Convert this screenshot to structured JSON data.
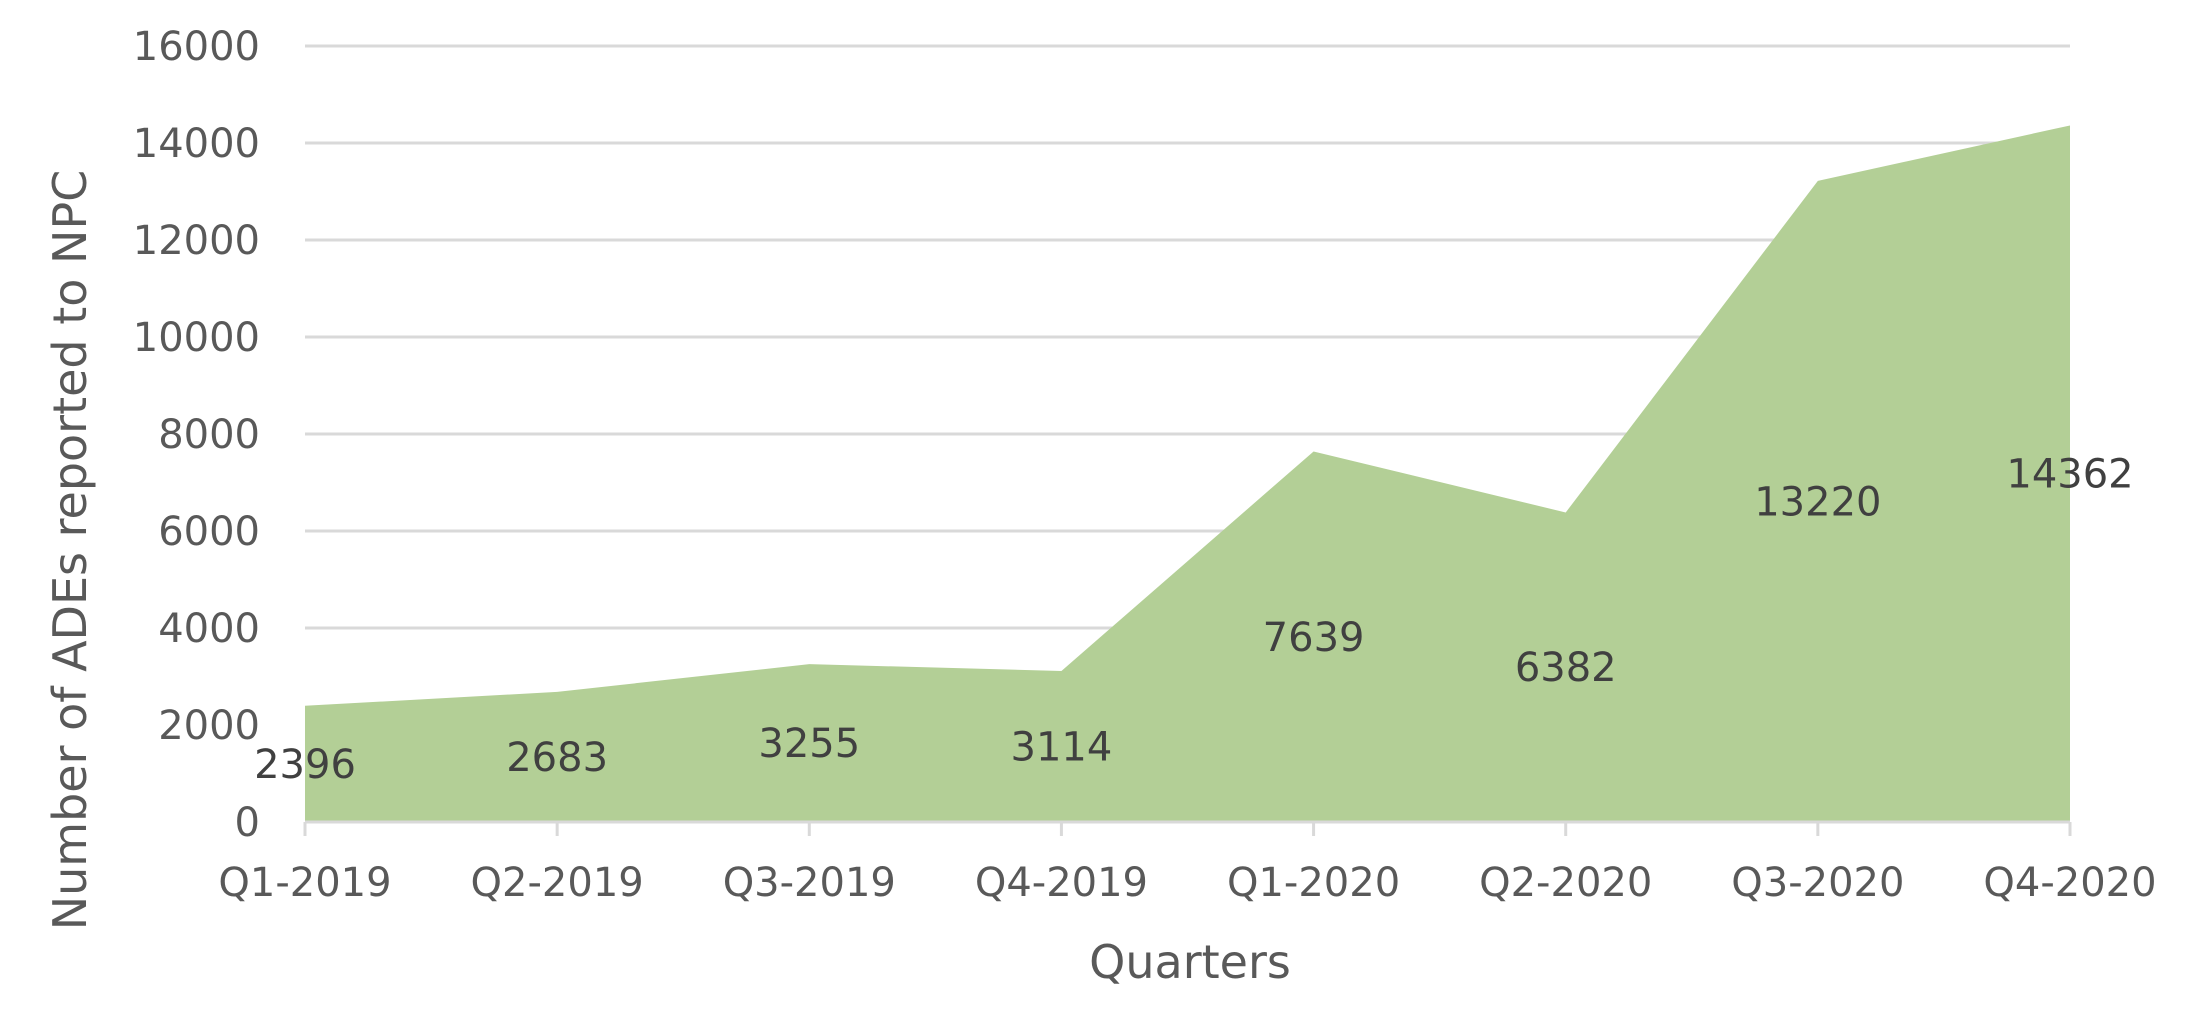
{
  "chart_data": {
    "type": "area",
    "categories": [
      "Q1-2019",
      "Q2-2019",
      "Q3-2019",
      "Q4-2019",
      "Q1-2020",
      "Q2-2020",
      "Q3-2020",
      "Q4-2020"
    ],
    "values": [
      2396,
      2683,
      3255,
      3114,
      7639,
      6382,
      13220,
      14362
    ],
    "data_labels": [
      "2396",
      "2683",
      "3255",
      "3114",
      "7639",
      "6382",
      "13220",
      "14362"
    ],
    "title": "",
    "xlabel": "Quarters",
    "ylabel": "Number of ADEs reported to NPC",
    "ylim": [
      0,
      16000
    ],
    "yticks": [
      "0",
      "2000",
      "4000",
      "6000",
      "8000",
      "10000",
      "12000",
      "14000",
      "16000"
    ],
    "grid": true,
    "legend": "none",
    "colors": {
      "area": "#b3cf96",
      "grid": "#d9d9d9",
      "axis": "#d9d9d9",
      "text": "#595959"
    }
  }
}
